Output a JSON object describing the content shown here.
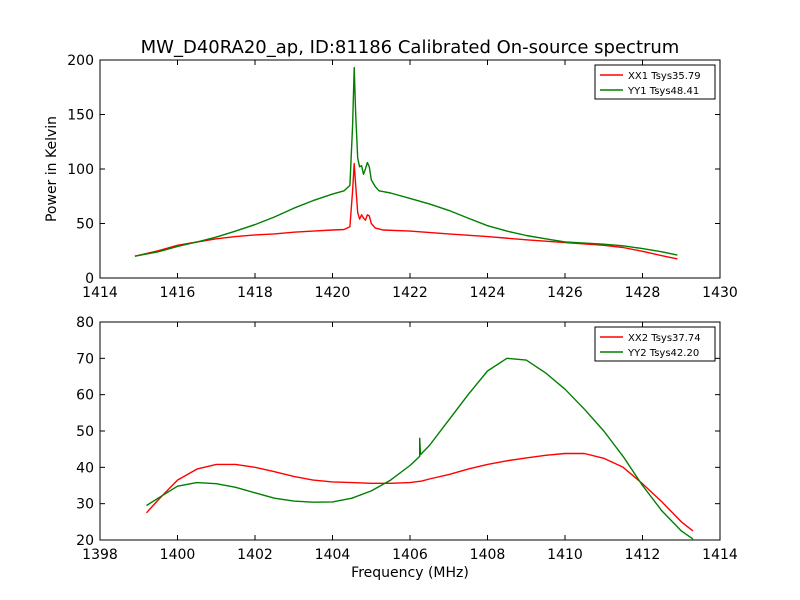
{
  "figure": {
    "title": "MW_D40RA20_ap, ID:81186 Calibrated On-source spectrum",
    "xlabel": "Frequency (MHz)"
  },
  "colors": {
    "xx": "#ff0000",
    "yy": "#007f00"
  },
  "chart_data": [
    {
      "type": "line",
      "title": "MW_D40RA20_ap, ID:81186 Calibrated On-source spectrum",
      "xlabel": "",
      "ylabel": "Power in Kelvin",
      "xlim": [
        1414,
        1430
      ],
      "ylim": [
        0,
        200
      ],
      "xticks": [
        1414,
        1416,
        1418,
        1420,
        1422,
        1424,
        1426,
        1428,
        1430
      ],
      "yticks": [
        0,
        50,
        100,
        150,
        200
      ],
      "grid": false,
      "legend": "top-right",
      "series": [
        {
          "name": "XX1 Tsys35.79",
          "color": "#ff0000",
          "points": [
            [
              1414.9,
              20
            ],
            [
              1415.5,
              25
            ],
            [
              1416,
              30
            ],
            [
              1416.5,
              33
            ],
            [
              1417,
              36
            ],
            [
              1417.5,
              38
            ],
            [
              1418,
              39.5
            ],
            [
              1418.5,
              40.5
            ],
            [
              1419,
              42
            ],
            [
              1419.5,
              43
            ],
            [
              1420,
              44
            ],
            [
              1420.3,
              44.5
            ],
            [
              1420.45,
              47
            ],
            [
              1420.52,
              80
            ],
            [
              1420.56,
              105
            ],
            [
              1420.6,
              85
            ],
            [
              1420.65,
              60
            ],
            [
              1420.7,
              54
            ],
            [
              1420.75,
              58
            ],
            [
              1420.8,
              55
            ],
            [
              1420.85,
              53
            ],
            [
              1420.9,
              58
            ],
            [
              1420.95,
              57
            ],
            [
              1421,
              50
            ],
            [
              1421.1,
              46
            ],
            [
              1421.3,
              44
            ],
            [
              1422,
              43
            ],
            [
              1423,
              40.5
            ],
            [
              1424,
              38
            ],
            [
              1425,
              35
            ],
            [
              1426,
              32.5
            ],
            [
              1427,
              30
            ],
            [
              1427.5,
              28
            ],
            [
              1428,
              24.5
            ],
            [
              1428.5,
              20.5
            ],
            [
              1428.9,
              17.5
            ]
          ]
        },
        {
          "name": "YY1 Tsys48.41",
          "color": "#007f00",
          "points": [
            [
              1414.9,
              20
            ],
            [
              1415.5,
              24
            ],
            [
              1416,
              29
            ],
            [
              1416.5,
              33
            ],
            [
              1417,
              37.5
            ],
            [
              1417.5,
              43
            ],
            [
              1418,
              49
            ],
            [
              1418.5,
              56
            ],
            [
              1419,
              64
            ],
            [
              1419.5,
              71
            ],
            [
              1420,
              77
            ],
            [
              1420.3,
              80
            ],
            [
              1420.45,
              85
            ],
            [
              1420.52,
              140
            ],
            [
              1420.56,
              193
            ],
            [
              1420.6,
              150
            ],
            [
              1420.65,
              110
            ],
            [
              1420.7,
              102
            ],
            [
              1420.75,
              103
            ],
            [
              1420.8,
              95
            ],
            [
              1420.85,
              100
            ],
            [
              1420.9,
              106
            ],
            [
              1420.95,
              102
            ],
            [
              1421,
              90
            ],
            [
              1421.1,
              84
            ],
            [
              1421.2,
              80
            ],
            [
              1421.5,
              78
            ],
            [
              1422,
              73
            ],
            [
              1422.5,
              68
            ],
            [
              1423,
              62
            ],
            [
              1423.5,
              55
            ],
            [
              1424,
              48
            ],
            [
              1424.5,
              43
            ],
            [
              1425,
              39
            ],
            [
              1425.5,
              36
            ],
            [
              1426,
              33
            ],
            [
              1426.5,
              32
            ],
            [
              1427,
              31
            ],
            [
              1427.5,
              29.5
            ],
            [
              1428,
              27
            ],
            [
              1428.5,
              24
            ],
            [
              1428.9,
              21
            ]
          ]
        }
      ]
    },
    {
      "type": "line",
      "title": "",
      "xlabel": "Frequency (MHz)",
      "ylabel": "",
      "xlim": [
        1398,
        1414
      ],
      "ylim": [
        20,
        80
      ],
      "xticks": [
        1398,
        1400,
        1402,
        1404,
        1406,
        1408,
        1410,
        1412,
        1414
      ],
      "yticks": [
        20,
        30,
        40,
        50,
        60,
        70,
        80
      ],
      "grid": false,
      "legend": "top-right",
      "series": [
        {
          "name": "XX2 Tsys37.74",
          "color": "#ff0000",
          "points": [
            [
              1399.2,
              27.5
            ],
            [
              1399.5,
              31
            ],
            [
              1400,
              36.5
            ],
            [
              1400.5,
              39.5
            ],
            [
              1401,
              40.8
            ],
            [
              1401.5,
              40.8
            ],
            [
              1402,
              40
            ],
            [
              1402.5,
              38.8
            ],
            [
              1403,
              37.5
            ],
            [
              1403.5,
              36.5
            ],
            [
              1404,
              36
            ],
            [
              1404.5,
              35.8
            ],
            [
              1405,
              35.6
            ],
            [
              1405.5,
              35.6
            ],
            [
              1406,
              35.8
            ],
            [
              1406.3,
              36.2
            ],
            [
              1406.5,
              36.8
            ],
            [
              1407,
              38
            ],
            [
              1407.5,
              39.5
            ],
            [
              1408,
              40.8
            ],
            [
              1408.5,
              41.8
            ],
            [
              1409,
              42.6
            ],
            [
              1409.5,
              43.3
            ],
            [
              1410,
              43.8
            ],
            [
              1410.5,
              43.8
            ],
            [
              1411,
              42.5
            ],
            [
              1411.5,
              40
            ],
            [
              1412,
              35.5
            ],
            [
              1412.5,
              30.5
            ],
            [
              1413,
              25
            ],
            [
              1413.3,
              22.5
            ]
          ]
        },
        {
          "name": "YY2 Tsys42.20",
          "color": "#007f00",
          "points": [
            [
              1399.2,
              29.5
            ],
            [
              1399.5,
              31.5
            ],
            [
              1400,
              34.8
            ],
            [
              1400.5,
              35.8
            ],
            [
              1401,
              35.5
            ],
            [
              1401.5,
              34.5
            ],
            [
              1402,
              33
            ],
            [
              1402.5,
              31.5
            ],
            [
              1403,
              30.7
            ],
            [
              1403.5,
              30.4
            ],
            [
              1404,
              30.5
            ],
            [
              1404.5,
              31.5
            ],
            [
              1405,
              33.5
            ],
            [
              1405.5,
              36.5
            ],
            [
              1406,
              40.5
            ],
            [
              1406.25,
              43
            ],
            [
              1406.25,
              48
            ],
            [
              1406.27,
              43.5
            ],
            [
              1406.5,
              46
            ],
            [
              1407,
              53
            ],
            [
              1407.5,
              60
            ],
            [
              1408,
              66.5
            ],
            [
              1408.5,
              70
            ],
            [
              1409,
              69.5
            ],
            [
              1409.5,
              66
            ],
            [
              1410,
              61.5
            ],
            [
              1410.5,
              56
            ],
            [
              1411,
              50
            ],
            [
              1411.5,
              43
            ],
            [
              1412,
              35
            ],
            [
              1412.5,
              28
            ],
            [
              1413,
              22.5
            ],
            [
              1413.3,
              20.3
            ]
          ]
        }
      ]
    }
  ]
}
